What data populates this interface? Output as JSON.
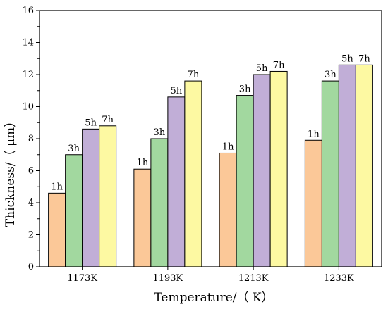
{
  "chart_data": {
    "type": "bar",
    "title": "",
    "xlabel": "Temperature/（ K）",
    "ylabel": "Thickness/（ μm）",
    "categories": [
      "1173K",
      "1193K",
      "1213K",
      "1233K"
    ],
    "ylim": [
      0,
      16
    ],
    "yticks": [
      "0",
      "2",
      "4",
      "6",
      "8",
      "10",
      "12",
      "14",
      "16"
    ],
    "legend": "none",
    "grid": false,
    "series": [
      {
        "name": "1h",
        "color": "#FBC898",
        "values": [
          4.6,
          6.1,
          7.1,
          7.9
        ]
      },
      {
        "name": "3h",
        "color": "#A2D89F",
        "values": [
          7.0,
          8.0,
          10.7,
          11.6
        ]
      },
      {
        "name": "5h",
        "color": "#C1AED7",
        "values": [
          8.6,
          10.6,
          12.0,
          12.6
        ]
      },
      {
        "name": "7h",
        "color": "#FDF9A2",
        "values": [
          8.8,
          11.6,
          12.2,
          12.6
        ]
      }
    ]
  }
}
